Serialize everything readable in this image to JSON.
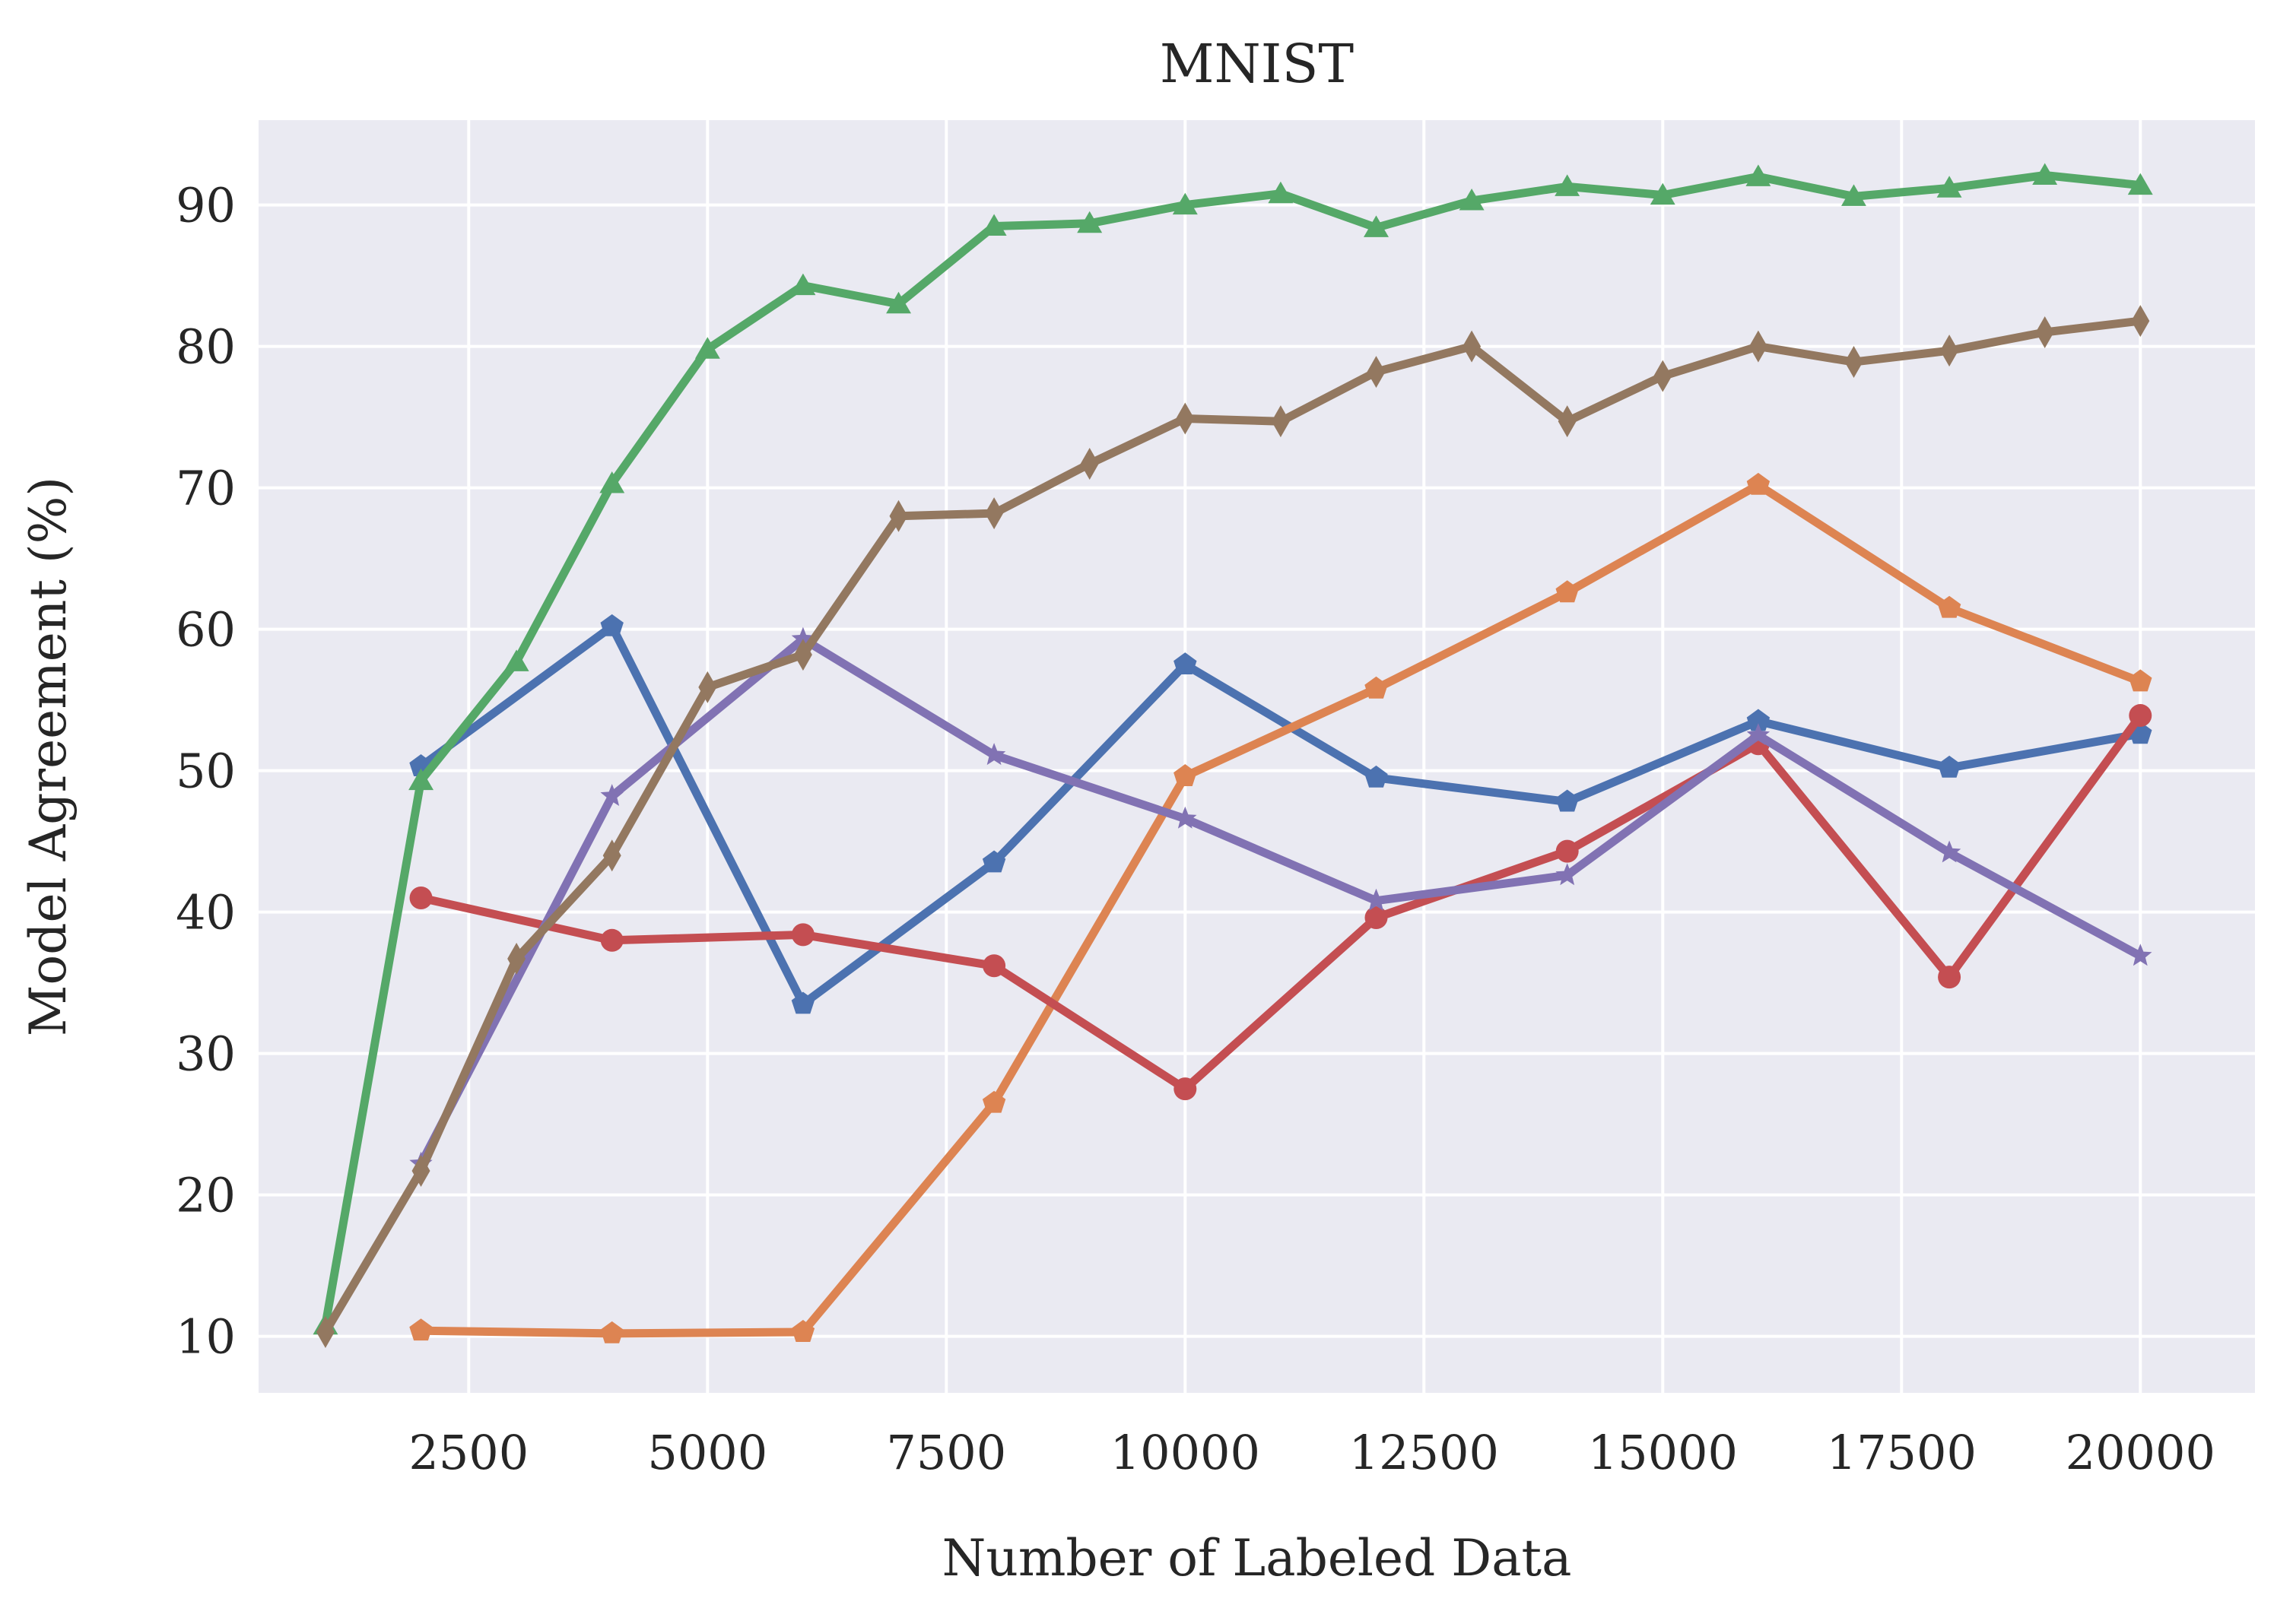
{
  "chart_data": {
    "type": "line",
    "title": "MNIST",
    "xlabel": "Number of Labeled Data",
    "ylabel": "Model Agreement (%)",
    "xlim": [
      300,
      21200
    ],
    "ylim": [
      6,
      96
    ],
    "xticks": [
      2500,
      5000,
      7500,
      10000,
      12500,
      15000,
      17500,
      20000
    ],
    "yticks": [
      10,
      20,
      30,
      40,
      50,
      60,
      70,
      80,
      90
    ],
    "grid": true,
    "legend": "none",
    "series": [
      {
        "color": "#4c72b0",
        "marker": "pentagon",
        "points": [
          [
            2000,
            50.3
          ],
          [
            4000,
            60.2
          ],
          [
            6000,
            33.5
          ],
          [
            8000,
            43.5
          ],
          [
            10000,
            57.5
          ],
          [
            12000,
            49.5
          ],
          [
            14000,
            47.8
          ],
          [
            16000,
            53.5
          ],
          [
            18000,
            50.2
          ],
          [
            20000,
            52.6
          ]
        ]
      },
      {
        "color": "#dd8452",
        "marker": "pentagon",
        "points": [
          [
            2000,
            10.4
          ],
          [
            4000,
            10.2
          ],
          [
            6000,
            10.3
          ],
          [
            8000,
            26.5
          ],
          [
            10000,
            49.6
          ],
          [
            12000,
            55.8
          ],
          [
            14000,
            62.6
          ],
          [
            16000,
            70.2
          ],
          [
            18000,
            61.5
          ],
          [
            20000,
            56.3
          ]
        ]
      },
      {
        "color": "#55a868",
        "marker": "triangle",
        "points": [
          [
            1000,
            10.8
          ],
          [
            2000,
            49.3
          ],
          [
            3000,
            57.7
          ],
          [
            4000,
            70.3
          ],
          [
            5000,
            79.8
          ],
          [
            6000,
            84.3
          ],
          [
            7000,
            83.0
          ],
          [
            8000,
            88.5
          ],
          [
            9000,
            88.7
          ],
          [
            10000,
            90.0
          ],
          [
            11000,
            90.8
          ],
          [
            12000,
            88.4
          ],
          [
            13000,
            90.3
          ],
          [
            14000,
            91.3
          ],
          [
            15000,
            90.7
          ],
          [
            16000,
            92.0
          ],
          [
            17000,
            90.6
          ],
          [
            18000,
            91.2
          ],
          [
            19000,
            92.1
          ],
          [
            20000,
            91.4
          ]
        ]
      },
      {
        "color": "#c44e52",
        "marker": "circle",
        "points": [
          [
            2000,
            41.0
          ],
          [
            4000,
            38.0
          ],
          [
            6000,
            38.4
          ],
          [
            8000,
            36.2
          ],
          [
            10000,
            27.5
          ],
          [
            12000,
            39.6
          ],
          [
            14000,
            44.3
          ],
          [
            16000,
            51.9
          ],
          [
            18000,
            35.4
          ],
          [
            20000,
            53.9
          ]
        ]
      },
      {
        "color": "#8172b3",
        "marker": "star",
        "points": [
          [
            2000,
            22.2
          ],
          [
            4000,
            48.2
          ],
          [
            6000,
            59.3
          ],
          [
            8000,
            51.1
          ],
          [
            10000,
            46.6
          ],
          [
            12000,
            40.8
          ],
          [
            14000,
            42.6
          ],
          [
            16000,
            52.5
          ],
          [
            18000,
            44.2
          ],
          [
            20000,
            36.9
          ]
        ]
      },
      {
        "color": "#937860",
        "marker": "diamond",
        "points": [
          [
            1000,
            10.3
          ],
          [
            2000,
            21.7
          ],
          [
            3000,
            36.7
          ],
          [
            4000,
            44.0
          ],
          [
            5000,
            55.9
          ],
          [
            6000,
            58.2
          ],
          [
            7000,
            68.0
          ],
          [
            8000,
            68.2
          ],
          [
            9000,
            71.7
          ],
          [
            10000,
            74.9
          ],
          [
            11000,
            74.7
          ],
          [
            12000,
            78.2
          ],
          [
            13000,
            80.0
          ],
          [
            14000,
            74.7
          ],
          [
            15000,
            77.9
          ],
          [
            16000,
            80.0
          ],
          [
            17000,
            78.9
          ],
          [
            18000,
            79.7
          ],
          [
            19000,
            81.0
          ],
          [
            20000,
            81.8
          ]
        ]
      }
    ]
  }
}
